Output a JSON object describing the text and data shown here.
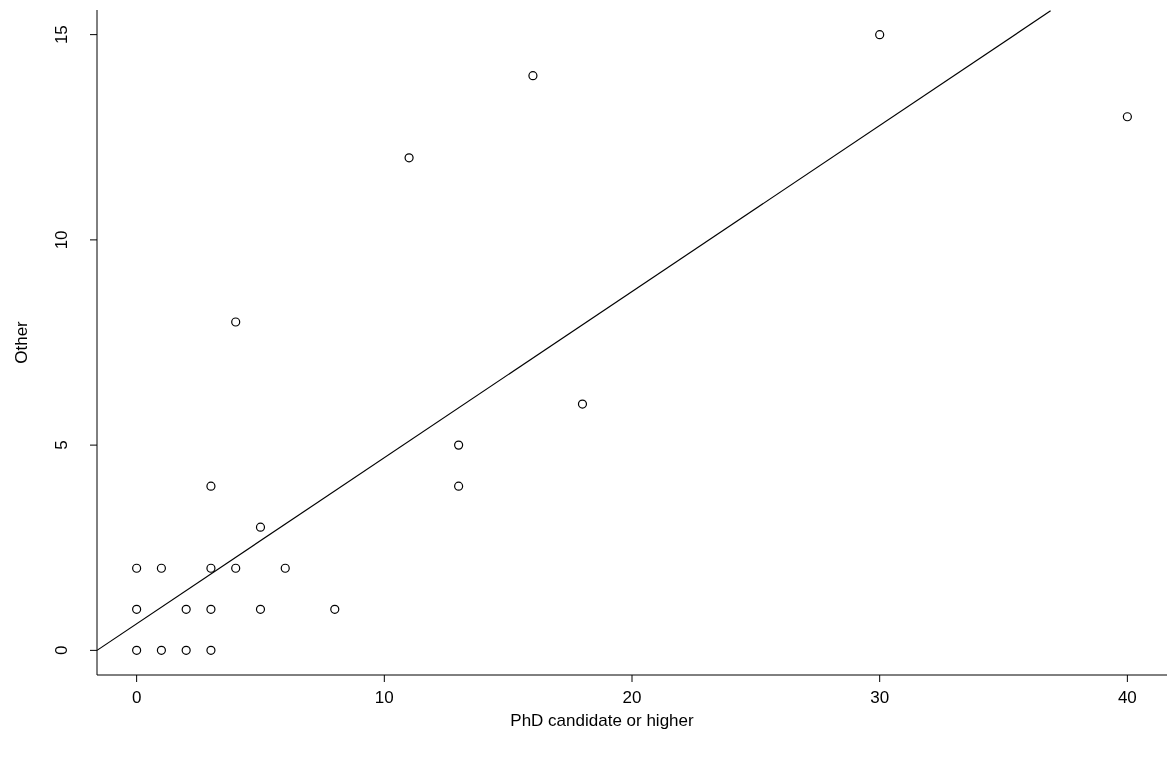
{
  "chart_data": {
    "type": "scatter",
    "xlabel": "PhD candidate or higher",
    "ylabel": "Other",
    "xlim": [
      -1.6,
      41.6
    ],
    "ylim": [
      -0.6,
      15.6
    ],
    "xticks": [
      0,
      10,
      20,
      30,
      40
    ],
    "yticks": [
      0,
      5,
      10,
      15
    ],
    "grid": false,
    "series": [
      {
        "marker": "circle",
        "color": "#000000",
        "x": [
          0,
          0,
          0,
          1,
          1,
          2,
          2,
          3,
          3,
          3,
          3,
          4,
          4,
          5,
          5,
          6,
          8,
          11,
          13,
          13,
          16,
          18,
          30,
          40
        ],
        "values": [
          0,
          1,
          2,
          0,
          2,
          0,
          1,
          0,
          1,
          2,
          4,
          2,
          8,
          1,
          3,
          2,
          1,
          12,
          4,
          5,
          14,
          6,
          15,
          13
        ]
      },
      {
        "type": "line",
        "color": "#000000",
        "line_style": "solid",
        "x": [
          -1.6,
          36.9
        ],
        "values": [
          0,
          15.58
        ]
      }
    ]
  }
}
